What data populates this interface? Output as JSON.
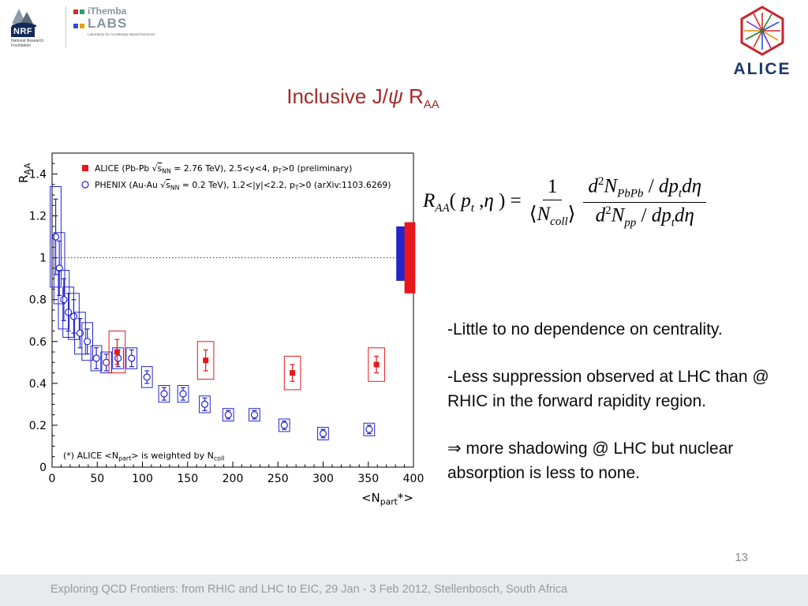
{
  "logos": {
    "nrf": {
      "abbr": "NRF",
      "caption": "National Research Foundation"
    },
    "ithemba": {
      "name": "iThemba",
      "labs": "LABS",
      "caption": "Laboratory for Accelerator Based Sciences"
    },
    "alice": {
      "label": "ALICE"
    }
  },
  "title": {
    "pre": "Inclusive J/",
    "psi": "ψ",
    "post": " R",
    "sub": "AA"
  },
  "formula": {
    "R": "R",
    "AA": "AA",
    "lp": "( ",
    "p": "p",
    "t": "t",
    "comma": " ,",
    "eta": "η",
    "rp_eq": " ) = ",
    "one": "1",
    "lang": "⟨",
    "N": "N",
    "coll": "coll",
    "rang": "⟩",
    "d": "d",
    "two": "2",
    "PbPb": "PbPb",
    "pp": "pp",
    "slash": " / ",
    "dp": "dp",
    "deta": "dη"
  },
  "notes": {
    "p1": "-Little to no dependence on centrality.",
    "p2": "-Less suppression observed at LHC than @ RHIC in the forward rapidity region.",
    "p3": "⇒ more shadowing @ LHC but nuclear absorption is less to none."
  },
  "footer": {
    "text": "Exploring QCD Frontiers: from RHIC and LHC to EIC, 29 Jan - 3 Feb 2012, Stellenbosch, South Africa",
    "page": "13"
  },
  "chart_data": {
    "type": "scatter",
    "xlabel_rich": [
      {
        "t": "<N"
      },
      {
        "t": "part",
        "sub": true
      },
      {
        "t": "*>"
      }
    ],
    "ylabel_rich": [
      {
        "t": "R"
      },
      {
        "t": "AA",
        "sub": true
      }
    ],
    "xlim": [
      0,
      400
    ],
    "ylim": [
      0,
      1.5
    ],
    "xticks": [
      0,
      50,
      100,
      150,
      200,
      250,
      300,
      350,
      400
    ],
    "yticks": [
      0,
      0.2,
      0.4,
      0.6,
      0.8,
      1,
      1.2,
      1.4
    ],
    "reference_line_y": 1,
    "grid": false,
    "legend_position": "top-left-inside",
    "note_rich": [
      {
        "t": "(*) ALICE <N"
      },
      {
        "t": "part",
        "sub": true
      },
      {
        "t": "> is weighted by N"
      },
      {
        "t": "coll",
        "sub": true
      }
    ],
    "series": [
      {
        "name": "ALICE",
        "marker": "filled-square",
        "color": "#e8171c",
        "box_halfwidth": 9,
        "label_rich": [
          {
            "t": "ALICE (Pb-Pb √"
          },
          {
            "t": "s",
            "ov": true
          },
          {
            "t": "NN",
            "sub": true
          },
          {
            "t": " = 2.76 TeV), 2.5<y<4, p"
          },
          {
            "t": "T",
            "sub": true
          },
          {
            "t": ">0 (preliminary)"
          }
        ],
        "points": [
          {
            "x": 72,
            "y": 0.55,
            "ey": 0.06,
            "sy": 0.1
          },
          {
            "x": 170,
            "y": 0.51,
            "ey": 0.05,
            "sy": 0.09
          },
          {
            "x": 266,
            "y": 0.45,
            "ey": 0.04,
            "sy": 0.08
          },
          {
            "x": 359,
            "y": 0.49,
            "ey": 0.04,
            "sy": 0.08
          }
        ]
      },
      {
        "name": "PHENIX",
        "marker": "open-circle",
        "color": "#2424cc",
        "box_halfwidth": 6,
        "label_rich": [
          {
            "t": "PHENIX (Au-Au √"
          },
          {
            "t": "s",
            "ov": true
          },
          {
            "t": "NN",
            "sub": true
          },
          {
            "t": " = 0.2 TeV), 1.2<|y|<2.2, p"
          },
          {
            "t": "T",
            "sub": true
          },
          {
            "t": ">0 (arXiv:1103.6269)"
          }
        ],
        "points": [
          {
            "x": 4,
            "y": 1.1,
            "ey": 0.18,
            "sy": 0.24
          },
          {
            "x": 8,
            "y": 0.95,
            "ey": 0.13,
            "sy": 0.17
          },
          {
            "x": 13,
            "y": 0.8,
            "ey": 0.1,
            "sy": 0.14
          },
          {
            "x": 18,
            "y": 0.74,
            "ey": 0.09,
            "sy": 0.12
          },
          {
            "x": 24,
            "y": 0.72,
            "ey": 0.08,
            "sy": 0.11
          },
          {
            "x": 31,
            "y": 0.64,
            "ey": 0.07,
            "sy": 0.1
          },
          {
            "x": 39,
            "y": 0.6,
            "ey": 0.06,
            "sy": 0.09
          },
          {
            "x": 49,
            "y": 0.52,
            "ey": 0.05,
            "sy": 0.06
          },
          {
            "x": 60,
            "y": 0.5,
            "ey": 0.04,
            "sy": 0.05
          },
          {
            "x": 73,
            "y": 0.52,
            "ey": 0.04,
            "sy": 0.05
          },
          {
            "x": 88,
            "y": 0.52,
            "ey": 0.04,
            "sy": 0.05
          },
          {
            "x": 105,
            "y": 0.43,
            "ey": 0.03,
            "sy": 0.05
          },
          {
            "x": 124,
            "y": 0.35,
            "ey": 0.03,
            "sy": 0.04
          },
          {
            "x": 145,
            "y": 0.35,
            "ey": 0.03,
            "sy": 0.04
          },
          {
            "x": 169,
            "y": 0.3,
            "ey": 0.03,
            "sy": 0.04
          },
          {
            "x": 195,
            "y": 0.25,
            "ey": 0.02,
            "sy": 0.03
          },
          {
            "x": 224,
            "y": 0.25,
            "ey": 0.02,
            "sy": 0.03
          },
          {
            "x": 257,
            "y": 0.2,
            "ey": 0.02,
            "sy": 0.03
          },
          {
            "x": 300,
            "y": 0.16,
            "ey": 0.02,
            "sy": 0.03
          },
          {
            "x": 351,
            "y": 0.18,
            "ey": 0.02,
            "sy": 0.03
          }
        ]
      }
    ],
    "global_boxes": [
      {
        "x": 387,
        "halfwidth": 6,
        "y": 1.02,
        "half": 0.13,
        "color": "#2424cc"
      },
      {
        "x": 396,
        "halfwidth": 6,
        "y": 1.0,
        "half": 0.17,
        "color": "#e8171c"
      }
    ]
  }
}
